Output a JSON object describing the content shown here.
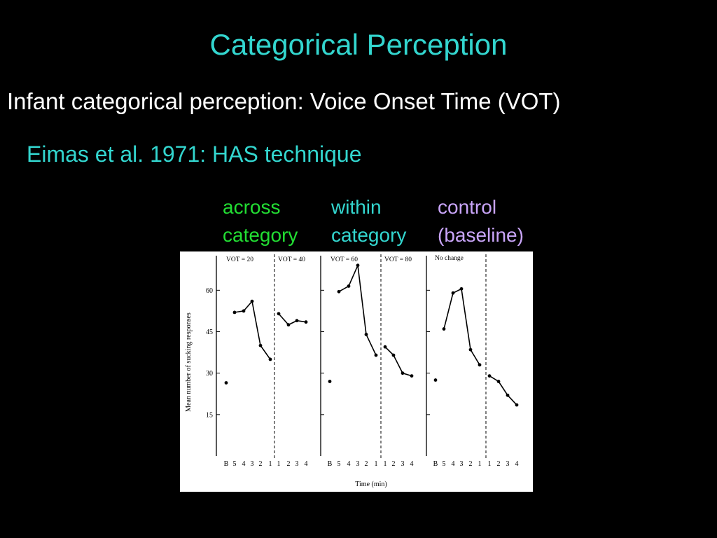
{
  "slide": {
    "title": "Categorical Perception",
    "subtitle": "Infant categorical perception: Voice Onset Time (VOT)",
    "citation": "Eimas et al. 1971: HAS technique"
  },
  "conditions": [
    {
      "line1": "across",
      "line2": "category",
      "color": "#22dd33"
    },
    {
      "line1": "within",
      "line2": "category",
      "color": "#33d6cf"
    },
    {
      "line1": "control",
      "line2": "(baseline)",
      "color": "#c8a4f8"
    }
  ],
  "colors": {
    "title": "#33d6cf",
    "background": "#000000",
    "figure_bg": "#ffffff"
  },
  "chart_data": {
    "type": "line",
    "ylabel": "Mean number of sucking responses",
    "xlabel": "Time (min)",
    "ylim": [
      0,
      72
    ],
    "yticks": [
      15,
      30,
      45,
      60
    ],
    "x_categories": [
      "B",
      "5",
      "4",
      "3",
      "2",
      "1",
      "1",
      "2",
      "3",
      "4"
    ],
    "grid": false,
    "panels": [
      {
        "labels": [
          "VOT = 20",
          "VOT = 40"
        ],
        "baseline": 26.5,
        "pre_shift": [
          52,
          52.5,
          56,
          40,
          35
        ],
        "post_shift": [
          51.5,
          47.5,
          49,
          48.5
        ]
      },
      {
        "labels": [
          "VOT = 60",
          "VOT = 80"
        ],
        "baseline": 27,
        "pre_shift": [
          59.5,
          61.5,
          69,
          44,
          36.5
        ],
        "post_shift": [
          39.5,
          36.5,
          30,
          29
        ]
      },
      {
        "labels": [
          "No change"
        ],
        "baseline": 27.5,
        "pre_shift": [
          46,
          59,
          60.5,
          38.5,
          33
        ],
        "post_shift": [
          29,
          27,
          22,
          18.5
        ]
      }
    ]
  }
}
